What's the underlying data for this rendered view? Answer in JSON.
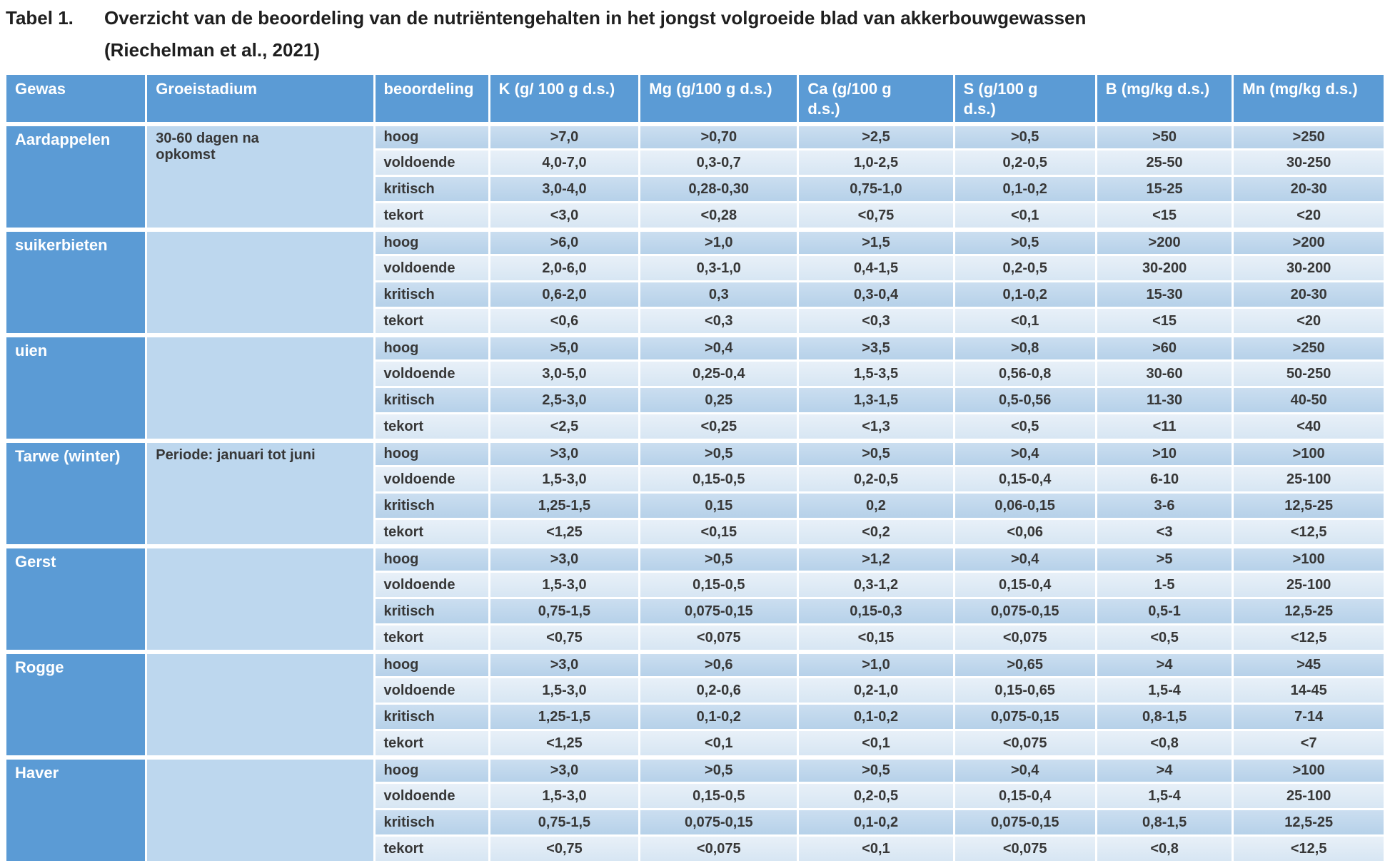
{
  "title": {
    "label": "Tabel 1.",
    "text": "Overzicht van de beoordeling van de nutriëntengehalten in het jongst volgroeide blad van akkerbouwgewassen",
    "source": "(Riechelman et al., 2021)"
  },
  "table": {
    "columns": [
      "Gewas",
      "Groeistadium",
      "beoordeling",
      "K (g/ 100 g d.s.)",
      "Mg (g/100 g d.s.)",
      "Ca (g/100 g\nd.s.)",
      "S (g/100 g\nd.s.)",
      "B (mg/kg d.s.)",
      "Mn (mg/kg d.s.)"
    ],
    "column_keys": [
      "gewas",
      "groeistadium",
      "beoordeling",
      "k",
      "mg",
      "ca",
      "s",
      "b",
      "mn"
    ],
    "groups": [
      {
        "gewas": "Aardappelen",
        "groeistadium": "30-60 dagen na\nopkomst",
        "rows": [
          {
            "beoordeling": "hoog",
            "k": ">7,0",
            "mg": ">0,70",
            "ca": ">2,5",
            "s": ">0,5",
            "b": ">50",
            "mn": ">250"
          },
          {
            "beoordeling": "voldoende",
            "k": "4,0-7,0",
            "mg": "0,3-0,7",
            "ca": "1,0-2,5",
            "s": "0,2-0,5",
            "b": "25-50",
            "mn": "30-250"
          },
          {
            "beoordeling": "kritisch",
            "k": "3,0-4,0",
            "mg": "0,28-0,30",
            "ca": "0,75-1,0",
            "s": "0,1-0,2",
            "b": "15-25",
            "mn": "20-30"
          },
          {
            "beoordeling": "tekort",
            "k": "<3,0",
            "mg": "<0,28",
            "ca": "<0,75",
            "s": "<0,1",
            "b": "<15",
            "mn": "<20"
          }
        ]
      },
      {
        "gewas": "suikerbieten",
        "groeistadium": "",
        "rows": [
          {
            "beoordeling": "hoog",
            "k": ">6,0",
            "mg": ">1,0",
            "ca": ">1,5",
            "s": ">0,5",
            "b": ">200",
            "mn": ">200"
          },
          {
            "beoordeling": "voldoende",
            "k": "2,0-6,0",
            "mg": "0,3-1,0",
            "ca": "0,4-1,5",
            "s": "0,2-0,5",
            "b": "30-200",
            "mn": "30-200"
          },
          {
            "beoordeling": "kritisch",
            "k": "0,6-2,0",
            "mg": "0,3",
            "ca": "0,3-0,4",
            "s": "0,1-0,2",
            "b": "15-30",
            "mn": "20-30"
          },
          {
            "beoordeling": "tekort",
            "k": "<0,6",
            "mg": "<0,3",
            "ca": "<0,3",
            "s": "<0,1",
            "b": "<15",
            "mn": "<20"
          }
        ]
      },
      {
        "gewas": "uien",
        "groeistadium": "",
        "rows": [
          {
            "beoordeling": "hoog",
            "k": ">5,0",
            "mg": ">0,4",
            "ca": ">3,5",
            "s": ">0,8",
            "b": ">60",
            "mn": ">250"
          },
          {
            "beoordeling": "voldoende",
            "k": "3,0-5,0",
            "mg": "0,25-0,4",
            "ca": "1,5-3,5",
            "s": "0,56-0,8",
            "b": "30-60",
            "mn": "50-250"
          },
          {
            "beoordeling": "kritisch",
            "k": "2,5-3,0",
            "mg": "0,25",
            "ca": "1,3-1,5",
            "s": "0,5-0,56",
            "b": "11-30",
            "mn": "40-50"
          },
          {
            "beoordeling": "tekort",
            "k": "<2,5",
            "mg": "<0,25",
            "ca": "<1,3",
            "s": "<0,5",
            "b": "<11",
            "mn": "<40"
          }
        ]
      },
      {
        "gewas": "Tarwe (winter)",
        "groeistadium": "Periode: januari tot juni",
        "rows": [
          {
            "beoordeling": "hoog",
            "k": ">3,0",
            "mg": ">0,5",
            "ca": ">0,5",
            "s": ">0,4",
            "b": ">10",
            "mn": ">100"
          },
          {
            "beoordeling": "voldoende",
            "k": "1,5-3,0",
            "mg": "0,15-0,5",
            "ca": "0,2-0,5",
            "s": "0,15-0,4",
            "b": "6-10",
            "mn": "25-100"
          },
          {
            "beoordeling": "kritisch",
            "k": "1,25-1,5",
            "mg": "0,15",
            "ca": "0,2",
            "s": "0,06-0,15",
            "b": "3-6",
            "mn": "12,5-25"
          },
          {
            "beoordeling": "tekort",
            "k": "<1,25",
            "mg": "<0,15",
            "ca": "<0,2",
            "s": "<0,06",
            "b": "<3",
            "mn": "<12,5"
          }
        ]
      },
      {
        "gewas": "Gerst",
        "groeistadium": "",
        "rows": [
          {
            "beoordeling": "hoog",
            "k": ">3,0",
            "mg": ">0,5",
            "ca": ">1,2",
            "s": ">0,4",
            "b": ">5",
            "mn": ">100"
          },
          {
            "beoordeling": "voldoende",
            "k": "1,5-3,0",
            "mg": "0,15-0,5",
            "ca": "0,3-1,2",
            "s": "0,15-0,4",
            "b": "1-5",
            "mn": "25-100"
          },
          {
            "beoordeling": "kritisch",
            "k": "0,75-1,5",
            "mg": "0,075-0,15",
            "ca": "0,15-0,3",
            "s": "0,075-0,15",
            "b": "0,5-1",
            "mn": "12,5-25"
          },
          {
            "beoordeling": "tekort",
            "k": "<0,75",
            "mg": "<0,075",
            "ca": "<0,15",
            "s": "<0,075",
            "b": "<0,5",
            "mn": "<12,5"
          }
        ]
      },
      {
        "gewas": "Rogge",
        "groeistadium": "",
        "rows": [
          {
            "beoordeling": "hoog",
            "k": ">3,0",
            "mg": ">0,6",
            "ca": ">1,0",
            "s": ">0,65",
            "b": ">4",
            "mn": ">45"
          },
          {
            "beoordeling": "voldoende",
            "k": "1,5-3,0",
            "mg": "0,2-0,6",
            "ca": "0,2-1,0",
            "s": "0,15-0,65",
            "b": "1,5-4",
            "mn": "14-45"
          },
          {
            "beoordeling": "kritisch",
            "k": "1,25-1,5",
            "mg": "0,1-0,2",
            "ca": "0,1-0,2",
            "s": "0,075-0,15",
            "b": "0,8-1,5",
            "mn": "7-14"
          },
          {
            "beoordeling": "tekort",
            "k": "<1,25",
            "mg": "<0,1",
            "ca": "<0,1",
            "s": "<0,075",
            "b": "<0,8",
            "mn": "<7"
          }
        ]
      },
      {
        "gewas": "Haver",
        "groeistadium": "",
        "rows": [
          {
            "beoordeling": "hoog",
            "k": ">3,0",
            "mg": ">0,5",
            "ca": ">0,5",
            "s": ">0,4",
            "b": ">4",
            "mn": ">100"
          },
          {
            "beoordeling": "voldoende",
            "k": "1,5-3,0",
            "mg": "0,15-0,5",
            "ca": "0,2-0,5",
            "s": "0,15-0,4",
            "b": "1,5-4",
            "mn": "25-100"
          },
          {
            "beoordeling": "kritisch",
            "k": "0,75-1,5",
            "mg": "0,075-0,15",
            "ca": "0,1-0,2",
            "s": "0,075-0,15",
            "b": "0,8-1,5",
            "mn": "12,5-25"
          },
          {
            "beoordeling": "tekort",
            "k": "<0,75",
            "mg": "<0,075",
            "ca": "<0,1",
            "s": "<0,075",
            "b": "<0,8",
            "mn": "<12,5"
          }
        ]
      }
    ]
  },
  "colors": {
    "header_blue": "#5B9BD5",
    "stadium_blue": "#BDD7EE",
    "row_dark_blue": "#BCD5EB",
    "row_light_blue": "#DEEAF6",
    "grid_white": "#FFFFFF",
    "text_dark": "#373737",
    "text_white": "#FFFFFF"
  }
}
